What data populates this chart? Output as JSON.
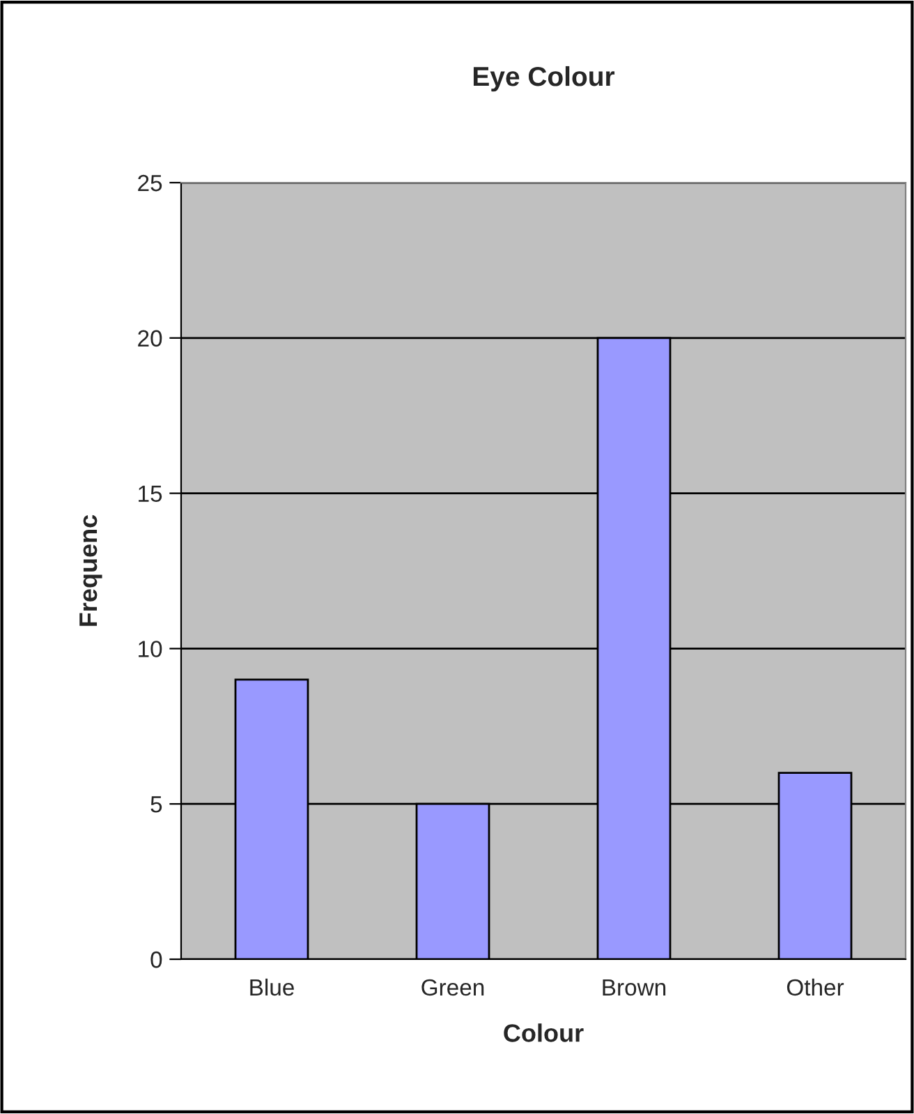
{
  "chart_data": {
    "type": "bar",
    "title": "Eye Colour",
    "xlabel": "Colour",
    "ylabel": "Frequenc",
    "categories": [
      "Blue",
      "Green",
      "Brown",
      "Other"
    ],
    "values": [
      9,
      5,
      20,
      6
    ],
    "color": "#9999ff",
    "ylim": [
      0,
      25
    ],
    "yticks": [
      0,
      5,
      10,
      15,
      20,
      25
    ],
    "grid": "y",
    "legend": false
  }
}
